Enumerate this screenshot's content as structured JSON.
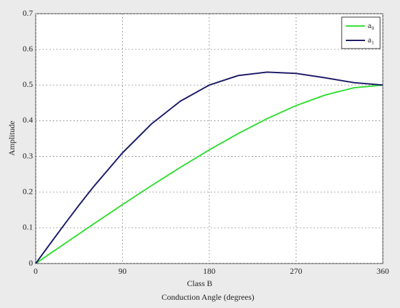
{
  "chart_data": {
    "type": "line",
    "subtitle": "Class B",
    "x_label": "Conduction Angle (degrees)",
    "y_label": "Amplitude",
    "x": [
      0,
      15,
      30,
      45,
      60,
      90,
      120,
      150,
      180,
      210,
      240,
      270,
      300,
      330,
      360
    ],
    "series": [
      {
        "name": "a₀",
        "color": "#33dd33",
        "values": [
          0,
          0.0278,
          0.0555,
          0.0831,
          0.1106,
          0.165,
          0.218,
          0.2693,
          0.3183,
          0.3642,
          0.406,
          0.4425,
          0.472,
          0.4923,
          0.5
        ]
      },
      {
        "name": "a₁",
        "color": "#1a1a66",
        "values": [
          0,
          0.0554,
          0.1102,
          0.1637,
          0.2152,
          0.31,
          0.391,
          0.4548,
          0.5,
          0.5266,
          0.5363,
          0.5326,
          0.5204,
          0.5068,
          0.5
        ]
      }
    ],
    "xlim": [
      0,
      360
    ],
    "xticks": [
      0,
      90,
      180,
      270,
      360
    ],
    "ylim": [
      0,
      0.7
    ],
    "yticks": [
      0,
      0.1,
      0.2,
      0.3,
      0.4,
      0.5,
      0.6,
      0.7
    ],
    "grid": true,
    "legend": "top-right"
  }
}
